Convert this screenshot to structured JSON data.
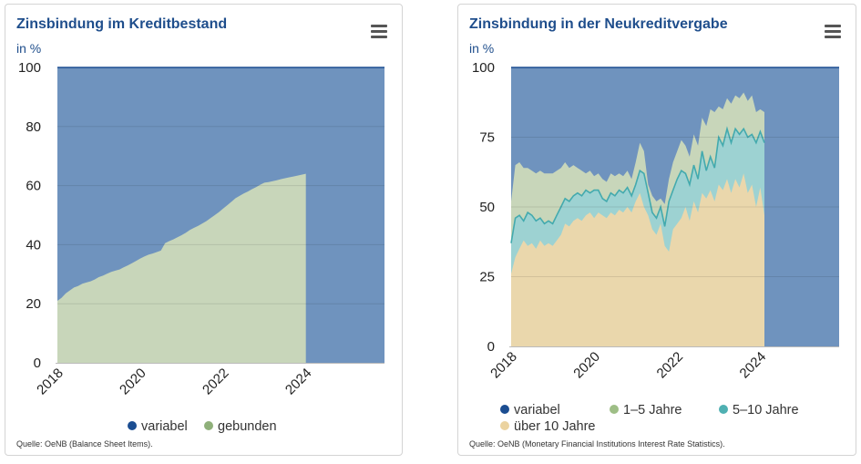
{
  "colors": {
    "variabel": "#6f93be",
    "gebunden": "#c8d6ba",
    "fuenf_zehn": "#9dd2d2",
    "ueber_zehn": "#ead7ac",
    "dot_variabel": "#1b4d91",
    "dot_gebunden": "#8fb07a",
    "dot_eins_fuenf": "#9ebe86",
    "dot_fuenf_zehn": "#4fb0b2",
    "dot_ueber_zehn": "#ebd3a0",
    "line_fuenf_zehn": "#43aaae",
    "line_top": "#1b4d91"
  },
  "left": {
    "title": "Zinsbindung im Kreditbestand",
    "unit": "in %",
    "menu_icon": "hamburger-menu-icon",
    "source": "Quelle: OeNB (Balance Sheet Items).",
    "legend": [
      "variabel",
      "gebunden"
    ]
  },
  "right": {
    "title": "Zinsbindung in der Neukreditvergabe",
    "unit": "in %",
    "menu_icon": "hamburger-menu-icon",
    "source": "Quelle: OeNB (Monetary Financial Institutions Interest Rate Statistics).",
    "legend": [
      "variabel",
      "1–5 Jahre",
      "5–10 Jahre",
      "über 10 Jahre"
    ]
  },
  "chart_data": [
    {
      "type": "area",
      "stacked": true,
      "title": "Zinsbindung im Kreditbestand",
      "ylabel": "in %",
      "ylim": [
        0,
        100
      ],
      "yticks": [
        0,
        20,
        40,
        60,
        80,
        100
      ],
      "xticks": [
        "2018",
        "2020",
        "2022",
        "2024"
      ],
      "xlim": [
        2018.0,
        2025.9
      ],
      "x_start": 2018.0,
      "x_step_years": 0.1,
      "series": [
        {
          "name": "gebunden",
          "values": [
            21,
            22,
            23.5,
            24.5,
            25.5,
            26,
            26.8,
            27.2,
            27.6,
            28.2,
            29,
            29.5,
            30.2,
            30.8,
            31.2,
            31.6,
            32.3,
            33,
            33.7,
            34.5,
            35.3,
            36,
            36.6,
            37,
            37.5,
            38,
            40.5,
            41.2,
            41.8,
            42.5,
            43.2,
            44,
            45,
            45.7,
            46.4,
            47.2,
            48,
            49,
            50,
            51,
            52.2,
            53.3,
            54.5,
            55.7,
            56.5,
            57.3,
            58,
            58.8,
            59.5,
            60.3,
            61,
            61.2,
            61.5,
            61.8,
            62.2,
            62.5,
            62.8,
            63.1,
            63.4,
            63.7,
            64
          ]
        },
        {
          "name": "variabel",
          "values_note": "remainder to 100"
        }
      ]
    },
    {
      "type": "area",
      "stacked": true,
      "title": "Zinsbindung in der Neukreditvergabe",
      "ylabel": "in %",
      "ylim": [
        0,
        100
      ],
      "yticks": [
        0,
        25,
        50,
        75,
        100
      ],
      "xticks": [
        "2018",
        "2020",
        "2022",
        "2024"
      ],
      "xlim": [
        2018.0,
        2025.9
      ],
      "x_start": 2018.0,
      "x_step_years": 0.1,
      "series": [
        {
          "name": "über 10 Jahre",
          "values": [
            26,
            32,
            35,
            38,
            36,
            37,
            35,
            38,
            36,
            37,
            36,
            38,
            40,
            44,
            43,
            45,
            46,
            45,
            47,
            48,
            46,
            48,
            47,
            46,
            48,
            47,
            49,
            48,
            50,
            48,
            52,
            55,
            50,
            47,
            42,
            40,
            44,
            36,
            34,
            42,
            44,
            46,
            50,
            45,
            52,
            48,
            55,
            53,
            56,
            52,
            58,
            56,
            60,
            55,
            60,
            57,
            62,
            55,
            58,
            50,
            57,
            47
          ]
        },
        {
          "name": "5–10 Jahre",
          "values": [
            37,
            46,
            47,
            45,
            48,
            47,
            45,
            46,
            44,
            45,
            44,
            47,
            50,
            53,
            52,
            54,
            55,
            54,
            56,
            55,
            56,
            56,
            53,
            52,
            55,
            54,
            56,
            55,
            57,
            54,
            58,
            63,
            62,
            55,
            48,
            46,
            50,
            43,
            52,
            56,
            60,
            63,
            62,
            58,
            65,
            60,
            70,
            63,
            68,
            64,
            75,
            72,
            78,
            73,
            78,
            76,
            78,
            75,
            76,
            73,
            77,
            73
          ]
        },
        {
          "name": "1–5 Jahre",
          "values": [
            52,
            65,
            66,
            64,
            64,
            63,
            62,
            63,
            62,
            62,
            62,
            63,
            64,
            66,
            64,
            65,
            64,
            63,
            62,
            63,
            61,
            62,
            60,
            59,
            62,
            61,
            62,
            61,
            63,
            60,
            66,
            73,
            70,
            58,
            54,
            52,
            53,
            51,
            60,
            66,
            70,
            74,
            72,
            68,
            76,
            72,
            82,
            79,
            85,
            84,
            86,
            85,
            89,
            87,
            90,
            89,
            91,
            88,
            90,
            84,
            85,
            84
          ]
        },
        {
          "name": "variabel",
          "values_note": "remainder to 100"
        }
      ]
    }
  ]
}
